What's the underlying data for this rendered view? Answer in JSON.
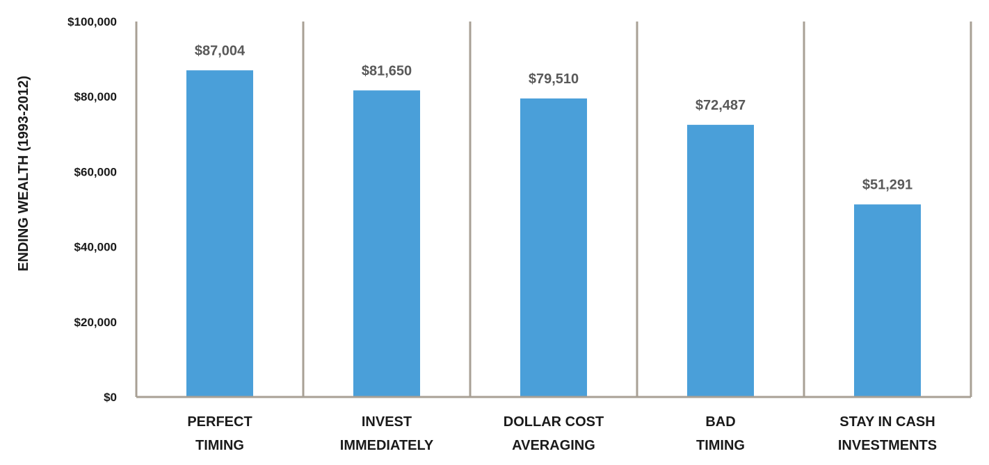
{
  "chart_data": {
    "type": "bar",
    "title": "",
    "xlabel": "",
    "ylabel": "ENDING WEALTH (1993-2012)",
    "categories": [
      [
        "PERFECT",
        "TIMING"
      ],
      [
        "INVEST",
        "IMMEDIATELY"
      ],
      [
        "DOLLAR COST",
        "AVERAGING"
      ],
      [
        "BAD",
        "TIMING"
      ],
      [
        "STAY IN CASH",
        "INVESTMENTS"
      ]
    ],
    "values": [
      87004,
      81650,
      79510,
      72487,
      51291
    ],
    "data_labels": [
      "$87,004",
      "$81,650",
      "$79,510",
      "$72,487",
      "$51,291"
    ],
    "ylim": [
      0,
      100000
    ],
    "yticks": [
      0,
      20000,
      40000,
      60000,
      80000,
      100000
    ],
    "ytick_labels": [
      "$0",
      "$20,000",
      "$40,000",
      "$60,000",
      "$80,000",
      "$100,000"
    ],
    "grid": false,
    "category_dividers": true,
    "legend": "none",
    "colors": {
      "bar": "#4a9fd9",
      "axis": "#a8a095",
      "text": "#1a1a1a",
      "data_label": "#595959"
    }
  }
}
